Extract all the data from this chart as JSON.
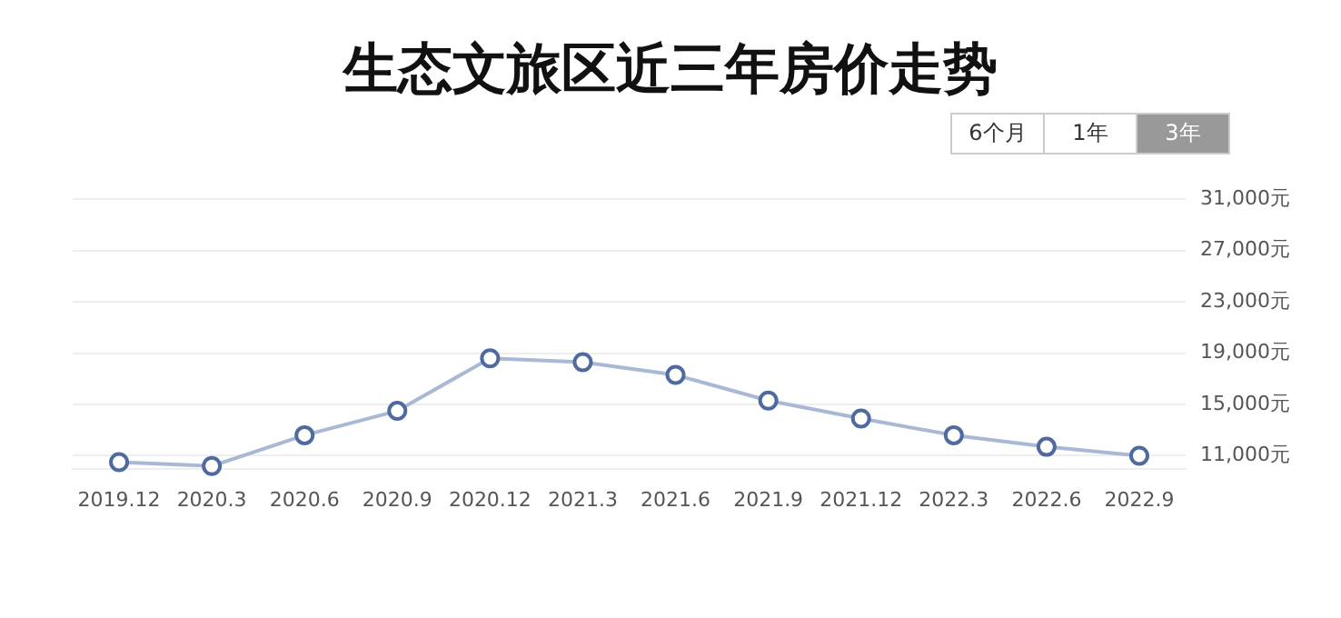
{
  "chart_data": {
    "type": "line",
    "title": "生态文旅区近三年房价走势",
    "annotations": [
      "6个月",
      "1年",
      "3年"
    ],
    "categories": [
      "2019.12",
      "2020.3",
      "2020.6",
      "2020.9",
      "2020.12",
      "2021.3",
      "2021.6",
      "2021.9",
      "2021.12",
      "2022.3",
      "2022.6",
      "2022.9"
    ],
    "series": [
      {
        "color": "#a9b8d4",
        "values": [
          10500,
          10200,
          12600,
          14500,
          18600,
          18300,
          17300,
          15300,
          13900,
          12600,
          11700,
          11000
        ]
      }
    ],
    "ylim": [
      10000,
      31000
    ],
    "yticks": [
      {
        "value": 11000,
        "label": "11,000元"
      },
      {
        "value": 15000,
        "label": "15,000元"
      },
      {
        "value": 19000,
        "label": "19,000元"
      },
      {
        "value": 23000,
        "label": "23,000元"
      },
      {
        "value": 27000,
        "label": "27,000元"
      },
      {
        "value": 31000,
        "label": "31,000元"
      }
    ],
    "grid": "y",
    "marker": "circle",
    "legend": false
  }
}
